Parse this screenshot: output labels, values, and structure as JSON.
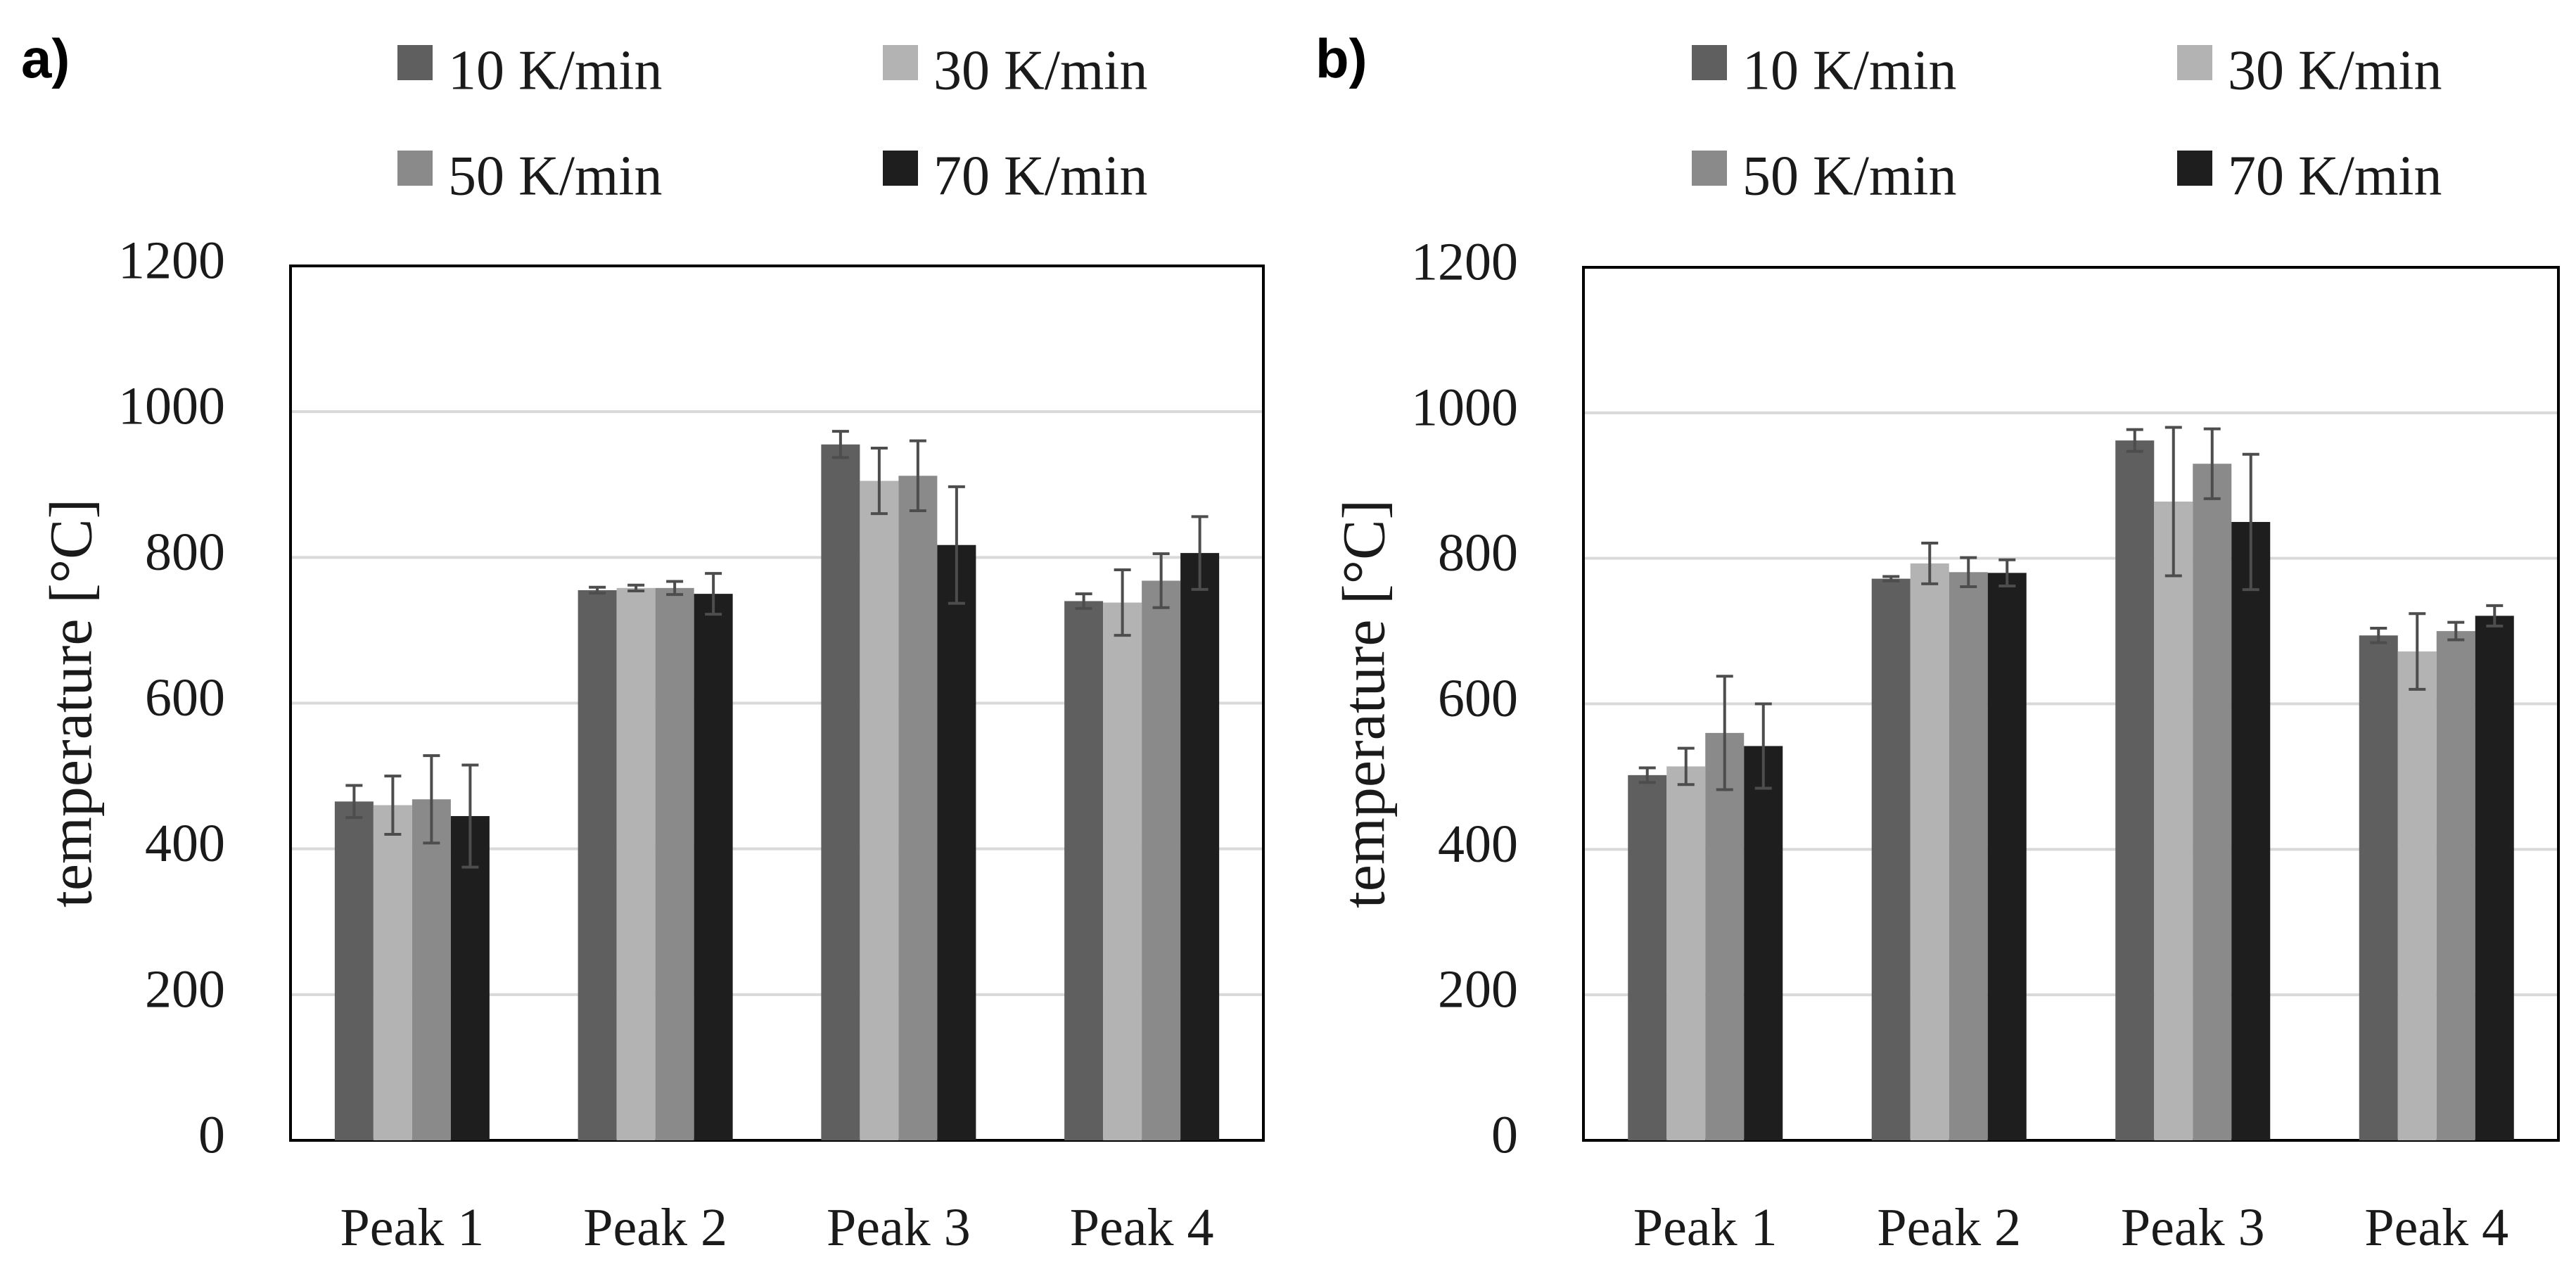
{
  "colors": {
    "s10": "#5f5f5f",
    "s30": "#b3b3b3",
    "s50": "#8a8a8a",
    "s70": "#1e1e1e",
    "grid": "#d9d9d9",
    "errorbar": "#4d4d4d",
    "frame": "#000000"
  },
  "chart_data": [
    {
      "panel_label": "a)",
      "type": "bar",
      "ylabel": "temperature [°C]",
      "xlabel": "",
      "ylim": [
        0,
        1200
      ],
      "yticks": [
        "0",
        "200",
        "400",
        "600",
        "800",
        "1000",
        "1200"
      ],
      "grid": true,
      "legend_position": "top",
      "categories": [
        "Peak 1",
        "Peak 2",
        "Peak 3",
        "Peak 4"
      ],
      "series": [
        {
          "name": "10 K/min",
          "values": [
            465,
            755,
            955,
            740
          ],
          "errors": [
            22,
            4,
            18,
            10
          ]
        },
        {
          "name": "30 K/min",
          "values": [
            460,
            758,
            905,
            738
          ],
          "errors": [
            40,
            4,
            45,
            45
          ]
        },
        {
          "name": "50 K/min",
          "values": [
            468,
            758,
            912,
            768
          ],
          "errors": [
            60,
            9,
            48,
            37
          ]
        },
        {
          "name": "70 K/min",
          "values": [
            445,
            750,
            817,
            806
          ],
          "errors": [
            70,
            28,
            80,
            50
          ]
        }
      ]
    },
    {
      "panel_label": "b)",
      "type": "bar",
      "ylabel": "temperature [°C]",
      "xlabel": "",
      "ylim": [
        0,
        1200
      ],
      "yticks": [
        "0",
        "200",
        "400",
        "600",
        "800",
        "1000",
        "1200"
      ],
      "grid": true,
      "legend_position": "top",
      "categories": [
        "Peak 1",
        "Peak 2",
        "Peak 3",
        "Peak 4"
      ],
      "series": [
        {
          "name": "10 K/min",
          "values": [
            502,
            772,
            962,
            694
          ],
          "errors": [
            10,
            3,
            15,
            10
          ]
        },
        {
          "name": "30 K/min",
          "values": [
            514,
            793,
            878,
            672
          ],
          "errors": [
            25,
            28,
            102,
            52
          ]
        },
        {
          "name": "50 K/min",
          "values": [
            560,
            781,
            930,
            700
          ],
          "errors": [
            78,
            20,
            48,
            12
          ]
        },
        {
          "name": "70 K/min",
          "values": [
            542,
            780,
            850,
            721
          ],
          "errors": [
            58,
            18,
            93,
            14
          ]
        }
      ]
    }
  ]
}
